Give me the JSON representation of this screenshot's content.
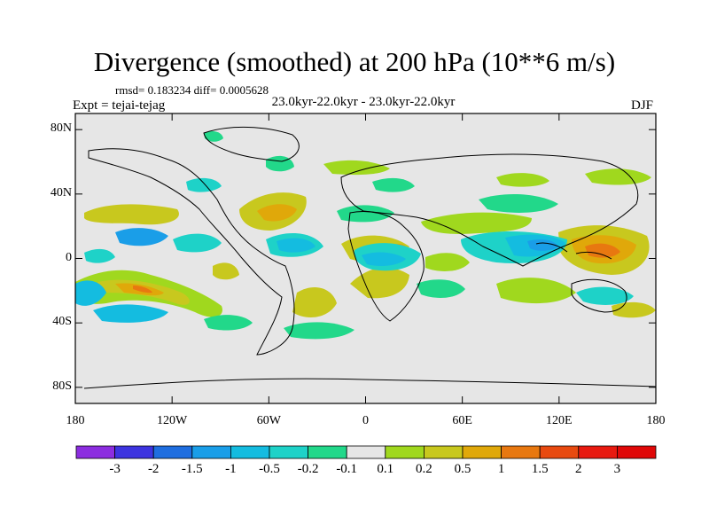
{
  "title": "Divergence (smoothed) at 200 hPa (10**6 m/s)",
  "stats": "rmsd= 0.183234 diff= 0.0005628",
  "experiment": "Expt = tejai-tejag",
  "period": "23.0kyr-22.0kyr - 23.0kyr-22.0kyr",
  "season": "DJF",
  "map": {
    "lat_ticks": [
      "80N",
      "40N",
      "0",
      "40S",
      "80S"
    ],
    "lon_ticks": [
      "180",
      "120W",
      "60W",
      "0",
      "60E",
      "120E",
      "180"
    ],
    "background_color": "#e6e6e6"
  },
  "colorbar": {
    "labels": [
      "-3",
      "-2",
      "-1.5",
      "-1",
      "-0.5",
      "-0.2",
      "-0.1",
      "0.1",
      "0.2",
      "0.5",
      "1",
      "1.5",
      "2",
      "3"
    ],
    "colors": [
      "#8c2de0",
      "#3d34e0",
      "#1f6ee0",
      "#1a9ee8",
      "#14bce0",
      "#1ed2c8",
      "#22d88a",
      "#e6e6e6",
      "#a0d81e",
      "#c8c81e",
      "#e0a80a",
      "#e87810",
      "#e84a10",
      "#e81a10",
      "#e00808"
    ]
  }
}
